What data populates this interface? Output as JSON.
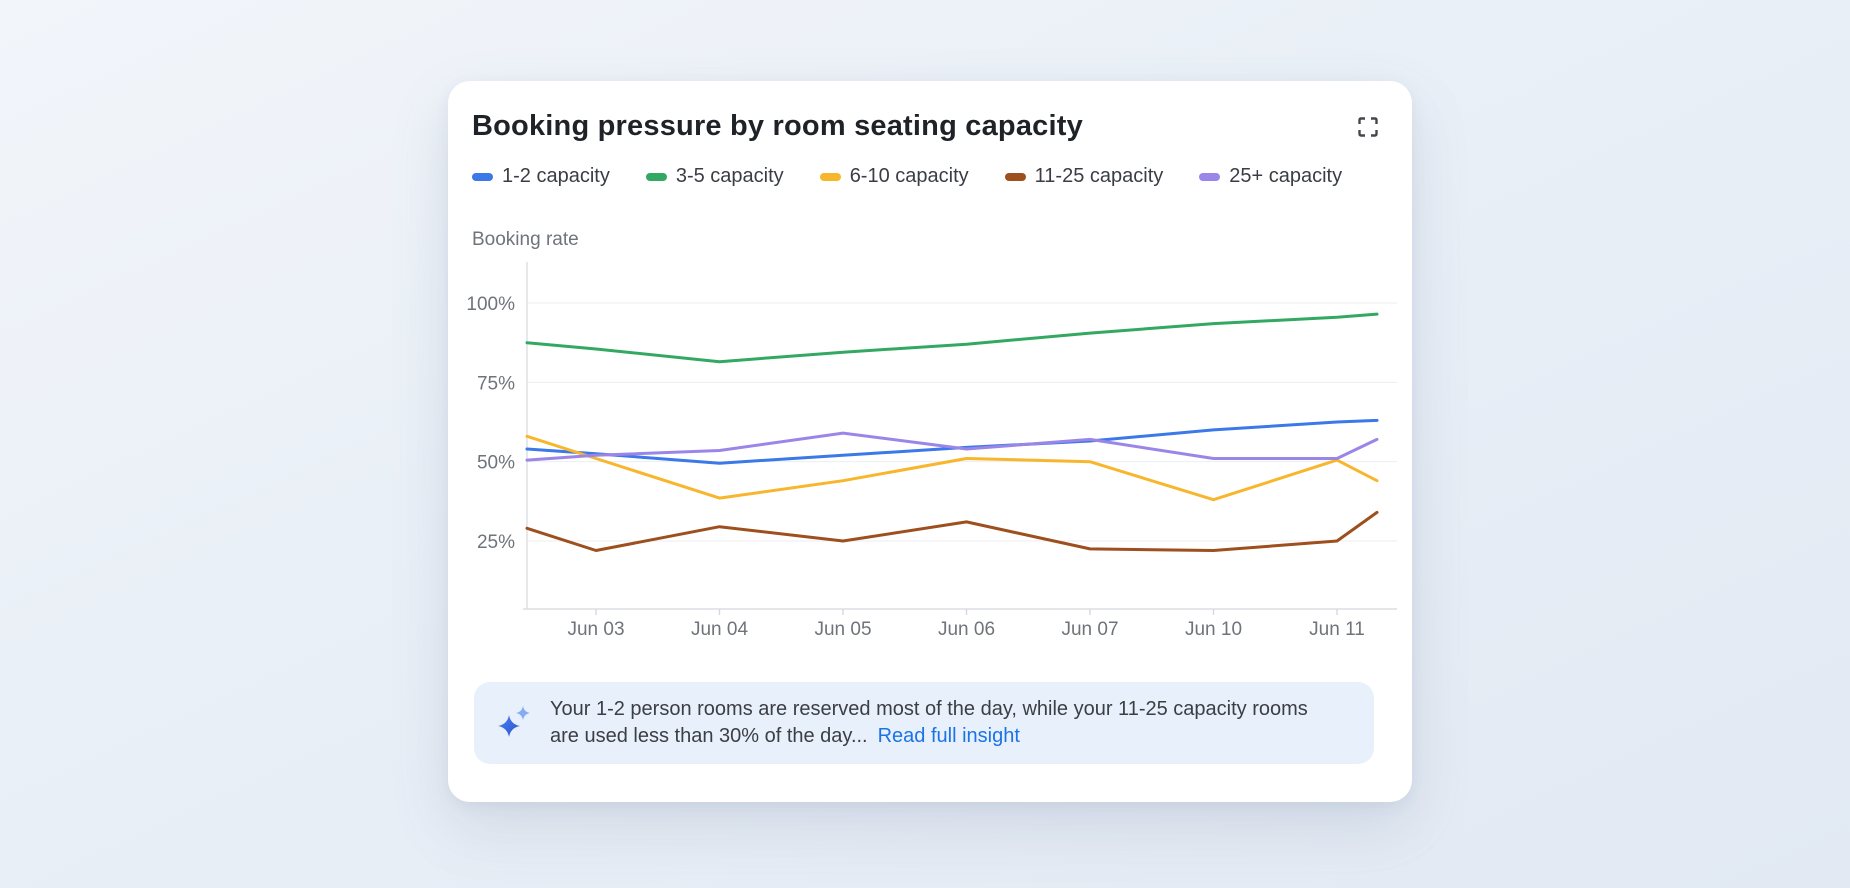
{
  "card": {
    "title": "Booking pressure by room seating capacity"
  },
  "chart_data": {
    "type": "line",
    "title": "Booking pressure by room seating capacity",
    "ylabel": "Booking rate",
    "xlabel": "",
    "grid": true,
    "legend_position": "top",
    "ylim": [
      0,
      110
    ],
    "yticks_labels": [
      "100%",
      "75%",
      "50%",
      "25%"
    ],
    "yticks_values": [
      100,
      75,
      50,
      25
    ],
    "categories": [
      "Jun 03",
      "Jun 04",
      "Jun 05",
      "Jun 06",
      "Jun 07",
      "Jun 10",
      "Jun 11"
    ],
    "note": "lines extend to the plot edges; edge_start/edge_end are the values where each line meets the left/right plot boundary",
    "series": [
      {
        "name": "1-2 capacity",
        "color": "#3b78e8",
        "edge_start": 54,
        "values": [
          52.5,
          49.5,
          52,
          54.5,
          56.5,
          60,
          62.5
        ],
        "edge_end": 63
      },
      {
        "name": "3-5 capacity",
        "color": "#33a862",
        "edge_start": 87.5,
        "values": [
          85.5,
          81.5,
          84.5,
          87,
          90.5,
          93.5,
          95.5
        ],
        "edge_end": 96.5
      },
      {
        "name": "6-10 capacity",
        "color": "#f8b62c",
        "edge_start": 58,
        "values": [
          51,
          38.5,
          44,
          51,
          50,
          38,
          50.5
        ],
        "edge_end": 44
      },
      {
        "name": "11-25 capacity",
        "color": "#9d4f1d",
        "edge_start": 29,
        "values": [
          22,
          29.5,
          25,
          31,
          22.5,
          22,
          25
        ],
        "edge_end": 34
      },
      {
        "name": "25+ capacity",
        "color": "#9a86e8",
        "edge_start": 50.5,
        "values": [
          52,
          53.5,
          59,
          54,
          57,
          51,
          51
        ],
        "edge_end": 57
      }
    ]
  },
  "insight": {
    "line1": "Your 1-2 person rooms are reserved most of the day, while your 11-25 capacity rooms",
    "line2": "are used less than 30% of the day...",
    "link": "Read full insight"
  }
}
